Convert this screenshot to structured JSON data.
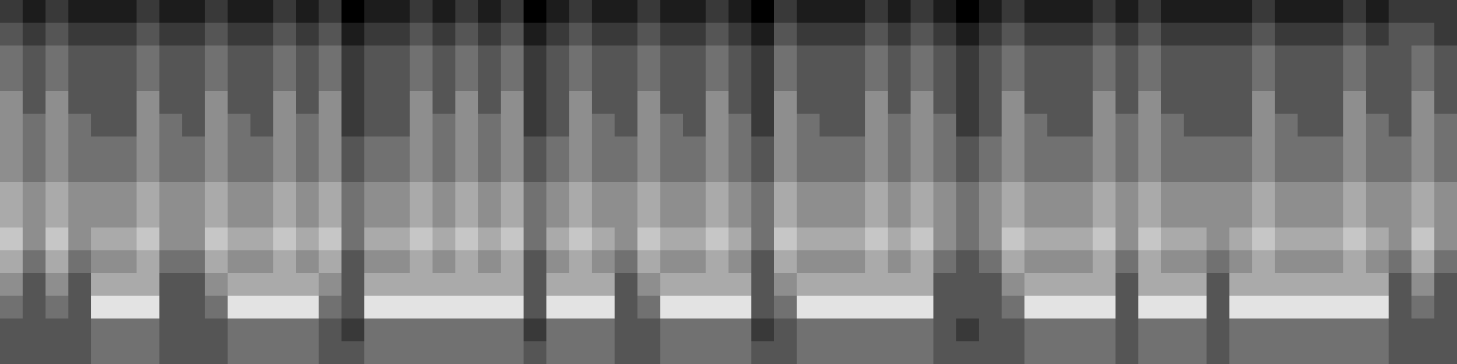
{
  "chart_data": {
    "type": "heatmap",
    "tick_labels": false,
    "zlim": [
      0,
      9
    ],
    "cells": [
      [
        2,
        1,
        2,
        1,
        1,
        1,
        2,
        1,
        1,
        2,
        1,
        1,
        2,
        1,
        2,
        0,
        1,
        1,
        2,
        1,
        2,
        1,
        2,
        0,
        1,
        2,
        1,
        1,
        2,
        1,
        1,
        2,
        1,
        0,
        2,
        1,
        1,
        1,
        2,
        1,
        2,
        1,
        0,
        1,
        2,
        1,
        1,
        1,
        2,
        1,
        2,
        1,
        1,
        1,
        1,
        2,
        1,
        1,
        1,
        2,
        1,
        2,
        2,
        2
      ],
      [
        3,
        2,
        3,
        2,
        2,
        2,
        3,
        2,
        2,
        3,
        2,
        2,
        3,
        2,
        3,
        1,
        2,
        2,
        3,
        2,
        3,
        2,
        3,
        1,
        2,
        3,
        2,
        2,
        3,
        2,
        2,
        3,
        2,
        1,
        3,
        2,
        2,
        2,
        3,
        2,
        3,
        2,
        1,
        2,
        3,
        2,
        2,
        2,
        3,
        2,
        3,
        2,
        2,
        2,
        2,
        3,
        2,
        2,
        2,
        3,
        2,
        3,
        3,
        2
      ],
      [
        4,
        3,
        4,
        3,
        3,
        3,
        4,
        3,
        3,
        4,
        3,
        3,
        4,
        3,
        4,
        2,
        3,
        3,
        4,
        3,
        4,
        3,
        4,
        2,
        3,
        4,
        3,
        3,
        4,
        3,
        3,
        4,
        3,
        2,
        4,
        3,
        3,
        3,
        4,
        3,
        4,
        3,
        2,
        3,
        4,
        3,
        3,
        3,
        4,
        3,
        4,
        3,
        3,
        3,
        3,
        4,
        3,
        3,
        3,
        4,
        3,
        3,
        4,
        3
      ],
      [
        4,
        3,
        4,
        3,
        3,
        3,
        4,
        3,
        3,
        4,
        3,
        3,
        4,
        3,
        4,
        2,
        3,
        3,
        4,
        3,
        4,
        3,
        4,
        2,
        3,
        4,
        3,
        3,
        4,
        3,
        3,
        4,
        3,
        2,
        4,
        3,
        3,
        3,
        4,
        3,
        4,
        3,
        2,
        3,
        4,
        3,
        3,
        3,
        4,
        3,
        4,
        3,
        3,
        3,
        3,
        4,
        3,
        3,
        3,
        4,
        3,
        3,
        4,
        3
      ],
      [
        5,
        3,
        5,
        3,
        3,
        3,
        5,
        3,
        3,
        5,
        3,
        3,
        5,
        3,
        5,
        2,
        3,
        3,
        5,
        3,
        5,
        3,
        5,
        2,
        3,
        5,
        3,
        3,
        5,
        3,
        3,
        5,
        3,
        2,
        5,
        3,
        3,
        3,
        5,
        3,
        5,
        3,
        2,
        3,
        5,
        3,
        3,
        3,
        5,
        3,
        5,
        3,
        3,
        3,
        3,
        5,
        3,
        3,
        3,
        5,
        3,
        3,
        5,
        3
      ],
      [
        5,
        4,
        5,
        4,
        3,
        3,
        5,
        4,
        3,
        5,
        4,
        3,
        5,
        4,
        5,
        2,
        3,
        3,
        5,
        4,
        5,
        4,
        5,
        2,
        3,
        5,
        4,
        3,
        5,
        4,
        3,
        5,
        4,
        2,
        5,
        4,
        3,
        3,
        5,
        4,
        5,
        4,
        2,
        3,
        5,
        4,
        3,
        3,
        5,
        4,
        5,
        4,
        3,
        3,
        3,
        5,
        4,
        3,
        3,
        5,
        4,
        3,
        5,
        4
      ],
      [
        5,
        4,
        5,
        4,
        4,
        4,
        5,
        4,
        4,
        5,
        4,
        4,
        5,
        4,
        5,
        3,
        4,
        4,
        5,
        4,
        5,
        4,
        5,
        3,
        4,
        5,
        4,
        4,
        5,
        4,
        4,
        5,
        4,
        3,
        5,
        4,
        4,
        4,
        5,
        4,
        5,
        4,
        3,
        4,
        5,
        4,
        4,
        4,
        5,
        4,
        5,
        4,
        4,
        4,
        4,
        5,
        4,
        4,
        4,
        5,
        4,
        4,
        5,
        4
      ],
      [
        5,
        4,
        5,
        4,
        4,
        4,
        5,
        4,
        4,
        5,
        4,
        4,
        5,
        4,
        5,
        3,
        4,
        4,
        5,
        4,
        5,
        4,
        5,
        3,
        4,
        5,
        4,
        4,
        5,
        4,
        4,
        5,
        4,
        3,
        5,
        4,
        4,
        4,
        5,
        4,
        5,
        4,
        3,
        4,
        5,
        4,
        4,
        4,
        5,
        4,
        5,
        4,
        4,
        4,
        4,
        5,
        4,
        4,
        4,
        5,
        4,
        4,
        5,
        4
      ],
      [
        6,
        5,
        6,
        5,
        5,
        5,
        6,
        5,
        5,
        6,
        5,
        5,
        6,
        5,
        6,
        4,
        5,
        5,
        6,
        5,
        6,
        5,
        6,
        4,
        5,
        6,
        5,
        5,
        6,
        5,
        5,
        6,
        5,
        4,
        6,
        5,
        5,
        5,
        6,
        5,
        6,
        5,
        4,
        5,
        6,
        5,
        5,
        5,
        6,
        5,
        6,
        5,
        5,
        5,
        5,
        6,
        5,
        5,
        5,
        6,
        5,
        5,
        6,
        5
      ],
      [
        6,
        5,
        6,
        5,
        5,
        5,
        6,
        5,
        5,
        6,
        5,
        5,
        6,
        5,
        6,
        4,
        5,
        5,
        6,
        5,
        6,
        5,
        6,
        4,
        5,
        6,
        5,
        5,
        6,
        5,
        5,
        6,
        5,
        4,
        6,
        5,
        5,
        5,
        6,
        5,
        6,
        5,
        4,
        5,
        6,
        5,
        5,
        5,
        6,
        5,
        6,
        5,
        5,
        5,
        5,
        6,
        5,
        5,
        5,
        6,
        5,
        5,
        6,
        5
      ],
      [
        7,
        5,
        7,
        5,
        6,
        6,
        7,
        5,
        5,
        7,
        6,
        6,
        7,
        6,
        7,
        4,
        6,
        6,
        7,
        6,
        7,
        6,
        7,
        4,
        6,
        7,
        6,
        5,
        7,
        6,
        6,
        7,
        6,
        4,
        7,
        6,
        6,
        6,
        7,
        6,
        7,
        5,
        4,
        5,
        7,
        6,
        6,
        6,
        7,
        5,
        7,
        6,
        6,
        5,
        6,
        7,
        6,
        6,
        6,
        7,
        6,
        5,
        7,
        5
      ],
      [
        6,
        4,
        6,
        4,
        5,
        5,
        6,
        4,
        4,
        6,
        5,
        5,
        6,
        5,
        6,
        3,
        5,
        5,
        6,
        5,
        6,
        5,
        6,
        3,
        5,
        6,
        5,
        4,
        6,
        5,
        5,
        6,
        5,
        3,
        6,
        5,
        5,
        5,
        6,
        5,
        6,
        4,
        3,
        4,
        6,
        5,
        5,
        5,
        6,
        4,
        6,
        5,
        5,
        4,
        5,
        6,
        5,
        5,
        5,
        6,
        5,
        4,
        6,
        4
      ],
      [
        5,
        3,
        5,
        3,
        6,
        6,
        6,
        3,
        3,
        5,
        6,
        6,
        6,
        6,
        5,
        3,
        6,
        6,
        6,
        6,
        6,
        6,
        6,
        3,
        6,
        6,
        6,
        3,
        5,
        6,
        6,
        6,
        6,
        3,
        5,
        6,
        6,
        6,
        6,
        6,
        6,
        3,
        3,
        3,
        5,
        6,
        6,
        6,
        6,
        3,
        6,
        6,
        6,
        3,
        6,
        6,
        6,
        6,
        6,
        6,
        6,
        3,
        5,
        3
      ],
      [
        4,
        3,
        4,
        3,
        8,
        8,
        8,
        3,
        3,
        4,
        8,
        8,
        8,
        8,
        4,
        3,
        8,
        8,
        8,
        8,
        8,
        8,
        8,
        3,
        8,
        8,
        8,
        3,
        4,
        8,
        8,
        8,
        8,
        3,
        4,
        8,
        8,
        8,
        8,
        8,
        8,
        3,
        3,
        3,
        4,
        8,
        8,
        8,
        8,
        3,
        8,
        8,
        8,
        3,
        8,
        8,
        8,
        8,
        8,
        8,
        8,
        3,
        4,
        3
      ],
      [
        3,
        3,
        3,
        3,
        4,
        4,
        4,
        3,
        3,
        3,
        4,
        4,
        4,
        4,
        3,
        2,
        4,
        4,
        4,
        4,
        4,
        4,
        4,
        2,
        4,
        4,
        4,
        3,
        3,
        4,
        4,
        4,
        4,
        2,
        3,
        4,
        4,
        4,
        4,
        4,
        4,
        3,
        2,
        3,
        3,
        4,
        4,
        4,
        4,
        3,
        4,
        4,
        4,
        3,
        4,
        4,
        4,
        4,
        4,
        4,
        4,
        3,
        3,
        3
      ],
      [
        3,
        3,
        3,
        3,
        4,
        4,
        4,
        3,
        3,
        3,
        4,
        4,
        4,
        4,
        3,
        3,
        4,
        4,
        4,
        4,
        4,
        4,
        4,
        3,
        4,
        4,
        4,
        3,
        3,
        4,
        4,
        4,
        4,
        3,
        3,
        4,
        4,
        4,
        4,
        4,
        4,
        3,
        3,
        3,
        3,
        4,
        4,
        4,
        4,
        3,
        4,
        4,
        4,
        3,
        4,
        4,
        4,
        4,
        4,
        4,
        4,
        3,
        3,
        3
      ]
    ]
  }
}
